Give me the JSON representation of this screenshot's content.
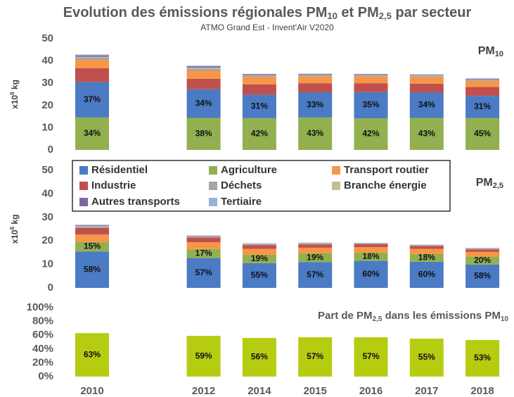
{
  "chart_data": [
    {
      "type": "stacked_bar",
      "title_parts": [
        "Evolution des émissions régionales PM",
        "10",
        " et PM",
        "2,5",
        " par secteur"
      ],
      "subtitle": "ATMO Grand Est - Invent'Air V2020",
      "panel_label_parts": [
        "PM",
        "10"
      ],
      "ylabel_parts": [
        "x10",
        "6",
        " kg"
      ],
      "ylim": [
        0,
        50
      ],
      "yticks": [
        0,
        10,
        20,
        30,
        40,
        50
      ],
      "series": [
        {
          "name": "Agriculture",
          "color": "#92b050",
          "values": [
            14.6,
            null,
            14.4,
            14.3,
            14.6,
            14.2,
            14.4,
            14.4
          ],
          "labels": [
            "34%",
            null,
            "38%",
            "42%",
            "43%",
            "42%",
            "43%",
            "45%"
          ]
        },
        {
          "name": "Résidentiel",
          "color": "#4a7bc4",
          "values": [
            15.9,
            null,
            12.9,
            10.5,
            11.2,
            11.8,
            11.4,
            9.9
          ],
          "labels": [
            "37%",
            null,
            "34%",
            "31%",
            "33%",
            "35%",
            "34%",
            "31%"
          ]
        },
        {
          "name": "Industrie",
          "color": "#c0504d",
          "values": [
            6.3,
            null,
            4.7,
            4.7,
            4.2,
            4.0,
            4.0,
            4.0
          ]
        },
        {
          "name": "Transport routier",
          "color": "#f79646",
          "values": [
            3.7,
            null,
            3.6,
            3.3,
            3.0,
            3.0,
            3.0,
            2.7
          ]
        },
        {
          "name": "Déchets",
          "color": "#a5a5a5",
          "values": [
            1.0,
            null,
            1.0,
            0.6,
            0.5,
            0.5,
            0.5,
            0.5
          ]
        },
        {
          "name": "Branche énergie",
          "color": "#c4bd97",
          "values": [
            0.4,
            null,
            0.4,
            0.2,
            0.2,
            0.2,
            0.2,
            0.2
          ]
        },
        {
          "name": "Autres transports",
          "color": "#8064a2",
          "values": [
            0.6,
            null,
            0.5,
            0.4,
            0.4,
            0.3,
            0.3,
            0.3
          ]
        },
        {
          "name": "Tertiaire",
          "color": "#95b3d7",
          "values": [
            0.4,
            null,
            0.4,
            0.2,
            0.2,
            0.2,
            0.2,
            0.2
          ]
        }
      ]
    },
    {
      "type": "stacked_bar",
      "panel_label_parts": [
        "PM",
        "2,5"
      ],
      "ylabel_parts": [
        "x10",
        "6",
        " kg"
      ],
      "ylim": [
        0,
        50
      ],
      "yticks": [
        0,
        10,
        20,
        30,
        40,
        50
      ],
      "series": [
        {
          "color": "#4a7bc4",
          "values": [
            15.5,
            null,
            12.7,
            10.5,
            11.0,
            11.5,
            11.1,
            9.9
          ],
          "labels": [
            "58%",
            null,
            "57%",
            "55%",
            "57%",
            "60%",
            "60%",
            "58%"
          ]
        },
        {
          "color": "#92b050",
          "values": [
            4.0,
            null,
            3.8,
            3.6,
            3.7,
            3.5,
            3.3,
            3.4
          ],
          "labels": [
            "15%",
            null,
            "17%",
            "19%",
            "19%",
            "18%",
            "18%",
            "20%"
          ]
        },
        {
          "color": "#f79646",
          "values": [
            3.2,
            null,
            2.9,
            2.5,
            2.4,
            2.3,
            2.2,
            2.0
          ]
        },
        {
          "color": "#c0504d",
          "values": [
            2.8,
            null,
            2.0,
            1.6,
            1.4,
            1.3,
            1.2,
            1.1
          ]
        },
        {
          "color": "#a5a5a5",
          "values": [
            0.6,
            null,
            0.4,
            0.4,
            0.4,
            0.3,
            0.3,
            0.3
          ]
        },
        {
          "color": "#c4bd97",
          "values": [
            0.3,
            null,
            0.2,
            0.2,
            0.2,
            0.1,
            0.1,
            0.1
          ]
        },
        {
          "color": "#8064a2",
          "values": [
            0.3,
            null,
            0.2,
            0.1,
            0.1,
            0.1,
            0.1,
            0.1
          ]
        },
        {
          "color": "#95b3d7",
          "values": [
            0.2,
            null,
            0.1,
            0.1,
            0.1,
            0.1,
            0.1,
            0.1
          ]
        }
      ]
    },
    {
      "type": "bar",
      "annotation_parts": [
        "Part de PM",
        "2,5",
        " dans les émissions PM",
        "10"
      ],
      "categories": [
        "2010",
        null,
        "2012",
        "2014",
        "2015",
        "2016",
        "2017",
        "2018"
      ],
      "values": [
        63,
        null,
        59,
        56,
        57,
        57,
        55,
        53
      ],
      "value_labels": [
        "63%",
        null,
        "59%",
        "56%",
        "57%",
        "57%",
        "55%",
        "53%"
      ],
      "color": "#b5cc11",
      "ylim": [
        0,
        100
      ],
      "yticks": [
        {
          "value": 0,
          "label": "0%"
        },
        {
          "value": 20,
          "label": "20%"
        },
        {
          "value": 40,
          "label": "40%"
        },
        {
          "value": 60,
          "label": "60%"
        },
        {
          "value": 80,
          "label": "80%"
        },
        {
          "value": 100,
          "label": "100%"
        }
      ]
    }
  ]
}
